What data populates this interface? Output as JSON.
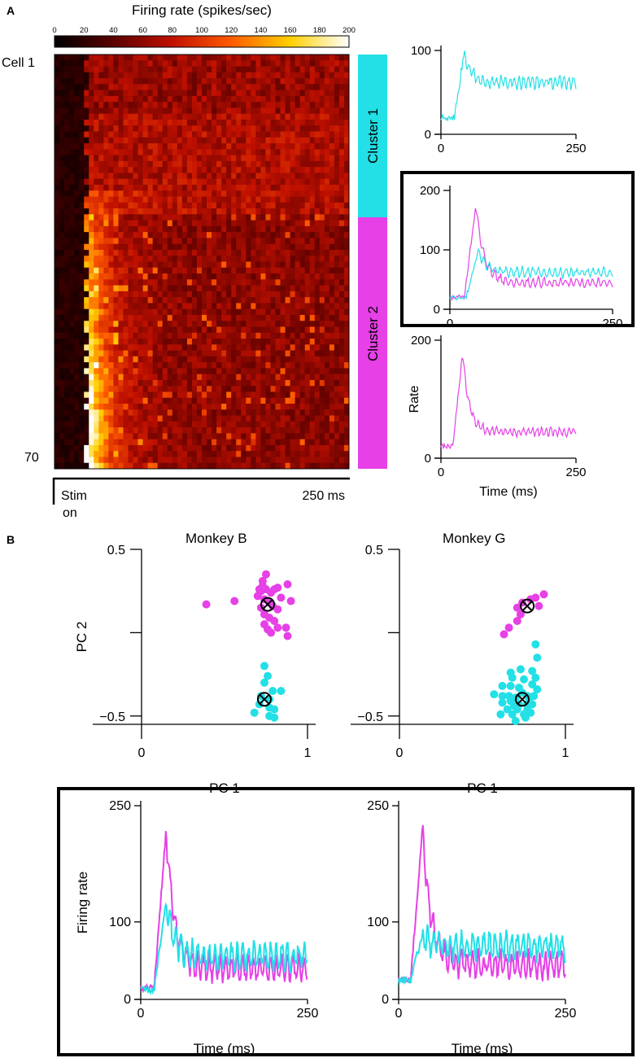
{
  "panel_labels": {
    "a": "A",
    "b": "B"
  },
  "colors": {
    "cluster1": "#22e0e6",
    "cluster2": "#e640e6",
    "axis": "#000000"
  },
  "chart_data": [
    {
      "id": "heatmap",
      "type": "heatmap",
      "title": "Firing rate (spikes/sec)",
      "colorbar_ticks": [
        "0",
        "20",
        "40",
        "60",
        "80",
        "100",
        "120",
        "140",
        "160",
        "180",
        "200"
      ],
      "colorbar_range": [
        0,
        200
      ],
      "rows": 70,
      "time_range_ms": [
        0,
        250
      ],
      "row_label_top": "Cell 1",
      "row_label_bottom": "70",
      "time_axis": {
        "start_label_line1": "Stim",
        "start_label_line2": "on",
        "end_label": "250 ms"
      },
      "clusters": [
        {
          "name": "Cluster 1",
          "rows": [
            1,
            27
          ]
        },
        {
          "name": "Cluster 2",
          "rows": [
            28,
            70
          ]
        }
      ]
    },
    {
      "id": "cluster1-psth",
      "type": "line",
      "xlim": [
        0,
        250
      ],
      "ylim": [
        0,
        100
      ],
      "xticks": [
        "0",
        "250"
      ],
      "yticks": [
        "0",
        "100"
      ],
      "series": [
        {
          "name": "Cluster 1",
          "onset_ms": 25,
          "baseline": 20,
          "peak": 98,
          "sustained": 62
        }
      ]
    },
    {
      "id": "overlay-psth",
      "type": "line",
      "xlim": [
        0,
        250
      ],
      "ylim": [
        0,
        200
      ],
      "xticks": [
        "0",
        "250"
      ],
      "yticks": [
        "0",
        "100",
        "200"
      ],
      "series": [
        {
          "name": "Cluster 1",
          "onset_ms": 25,
          "baseline": 20,
          "peak": 98,
          "sustained": 62
        },
        {
          "name": "Cluster 2",
          "onset_ms": 22,
          "baseline": 20,
          "peak": 178,
          "sustained": 45
        }
      ]
    },
    {
      "id": "cluster2-psth",
      "type": "line",
      "xlim": [
        0,
        250
      ],
      "ylim": [
        0,
        200
      ],
      "xticks": [
        "0",
        "250"
      ],
      "yticks": [
        "0",
        "200"
      ],
      "xlabel": "Time (ms)",
      "ylabel": "Rate",
      "series": [
        {
          "name": "Cluster 2",
          "onset_ms": 22,
          "baseline": 20,
          "peak": 178,
          "sustained": 45
        }
      ]
    },
    {
      "id": "pca-monkey-b",
      "type": "scatter",
      "title": "Monkey B",
      "xlabel": "PC 1",
      "ylabel": "PC 2",
      "xlim": [
        0,
        1
      ],
      "ylim": [
        -0.55,
        0.5
      ],
      "xticks": [
        "0",
        "1"
      ],
      "yticks": [
        "0.5",
        "−0.5"
      ],
      "series": [
        {
          "name": "Cluster 2",
          "points": [
            [
              0.39,
              0.17
            ],
            [
              0.56,
              0.19
            ],
            [
              0.71,
              0.26
            ],
            [
              0.72,
              0.25
            ],
            [
              0.73,
              0.28
            ],
            [
              0.75,
              0.26
            ],
            [
              0.78,
              0.24
            ],
            [
              0.8,
              0.26
            ],
            [
              0.82,
              0.27
            ],
            [
              0.88,
              0.29
            ],
            [
              0.7,
              0.22
            ],
            [
              0.74,
              0.2
            ],
            [
              0.77,
              0.18
            ],
            [
              0.79,
              0.16
            ],
            [
              0.82,
              0.14
            ],
            [
              0.9,
              0.19
            ],
            [
              0.72,
              0.15
            ],
            [
              0.74,
              0.11
            ],
            [
              0.77,
              0.09
            ],
            [
              0.8,
              0.07
            ],
            [
              0.74,
              0.05
            ],
            [
              0.76,
              0.02
            ],
            [
              0.78,
              0.0
            ],
            [
              0.82,
              0.03
            ],
            [
              0.87,
              0.03
            ],
            [
              0.88,
              -0.02
            ],
            [
              0.73,
              0.31
            ],
            [
              0.75,
              0.35
            ],
            [
              0.84,
              0.21
            ]
          ]
        },
        {
          "name": "Cluster 1",
          "points": [
            [
              0.74,
              -0.2
            ],
            [
              0.76,
              -0.26
            ],
            [
              0.74,
              -0.3
            ],
            [
              0.79,
              -0.35
            ],
            [
              0.84,
              -0.35
            ],
            [
              0.72,
              -0.38
            ],
            [
              0.77,
              -0.4
            ],
            [
              0.71,
              -0.43
            ],
            [
              0.77,
              -0.45
            ],
            [
              0.8,
              -0.46
            ],
            [
              0.68,
              -0.48
            ],
            [
              0.77,
              -0.5
            ],
            [
              0.8,
              -0.51
            ]
          ]
        }
      ],
      "centroids": [
        {
          "name": "Cluster 2",
          "x": 0.76,
          "y": 0.17
        },
        {
          "name": "Cluster 1",
          "x": 0.74,
          "y": -0.4
        }
      ]
    },
    {
      "id": "pca-monkey-g",
      "type": "scatter",
      "title": "Monkey G",
      "xlabel": "PC 1",
      "ylabel": "PC 2",
      "xlim": [
        0,
        1
      ],
      "ylim": [
        -0.55,
        0.5
      ],
      "xticks": [
        "0",
        "1"
      ],
      "yticks": [
        "0.5",
        "−0.5"
      ],
      "series": [
        {
          "name": "Cluster 2",
          "points": [
            [
              0.87,
              0.23
            ],
            [
              0.82,
              0.21
            ],
            [
              0.74,
              0.18
            ],
            [
              0.71,
              0.15
            ],
            [
              0.73,
              0.11
            ],
            [
              0.71,
              0.07
            ],
            [
              0.66,
              0.03
            ],
            [
              0.63,
              -0.01
            ],
            [
              0.79,
              0.2
            ],
            [
              0.84,
              0.16
            ]
          ]
        },
        {
          "name": "Cluster 1",
          "points": [
            [
              0.73,
              -0.22
            ],
            [
              0.67,
              -0.24
            ],
            [
              0.8,
              -0.23
            ],
            [
              0.68,
              -0.27
            ],
            [
              0.75,
              -0.28
            ],
            [
              0.82,
              -0.27
            ],
            [
              0.62,
              -0.32
            ],
            [
              0.67,
              -0.32
            ],
            [
              0.72,
              -0.33
            ],
            [
              0.8,
              -0.31
            ],
            [
              0.57,
              -0.37
            ],
            [
              0.62,
              -0.38
            ],
            [
              0.66,
              -0.38
            ],
            [
              0.7,
              -0.39
            ],
            [
              0.77,
              -0.38
            ],
            [
              0.81,
              -0.38
            ],
            [
              0.62,
              -0.42
            ],
            [
              0.67,
              -0.41
            ],
            [
              0.72,
              -0.43
            ],
            [
              0.77,
              -0.43
            ],
            [
              0.65,
              -0.46
            ],
            [
              0.71,
              -0.46
            ],
            [
              0.77,
              -0.46
            ],
            [
              0.8,
              -0.43
            ],
            [
              0.61,
              -0.49
            ],
            [
              0.68,
              -0.49
            ],
            [
              0.75,
              -0.49
            ],
            [
              0.79,
              -0.48
            ],
            [
              0.83,
              -0.34
            ],
            [
              0.83,
              -0.15
            ],
            [
              0.82,
              -0.07
            ],
            [
              0.78,
              -0.39
            ],
            [
              0.74,
              -0.36
            ],
            [
              0.69,
              -0.44
            ],
            [
              0.76,
              -0.51
            ],
            [
              0.7,
              -0.53
            ]
          ]
        }
      ],
      "centroids": [
        {
          "name": "Cluster 2",
          "x": 0.77,
          "y": 0.16
        },
        {
          "name": "Cluster 1",
          "x": 0.74,
          "y": -0.4
        }
      ]
    },
    {
      "id": "firing-monkey-b",
      "type": "line",
      "xlim": [
        0,
        250
      ],
      "ylim": [
        0,
        250
      ],
      "xticks": [
        "0",
        "250"
      ],
      "yticks": [
        "0",
        "100",
        "250"
      ],
      "xlabel": "Time (ms)",
      "ylabel": "Firing rate",
      "series": [
        {
          "name": "Cluster 1",
          "onset_ms": 20,
          "baseline": 12,
          "peak": 125,
          "sustained": 55
        },
        {
          "name": "Cluster 2",
          "onset_ms": 20,
          "baseline": 15,
          "peak": 220,
          "sustained": 40
        }
      ]
    },
    {
      "id": "firing-monkey-g",
      "type": "line",
      "xlim": [
        0,
        250
      ],
      "ylim": [
        0,
        250
      ],
      "xticks": [
        "0",
        "250"
      ],
      "yticks": [
        "0",
        "100",
        "250"
      ],
      "xlabel": "Time (ms)",
      "series": [
        {
          "name": "Cluster 1",
          "onset_ms": 18,
          "baseline": 25,
          "peak": 85,
          "sustained": 68
        },
        {
          "name": "Cluster 2",
          "onset_ms": 18,
          "baseline": 25,
          "peak": 222,
          "sustained": 45
        }
      ]
    }
  ]
}
